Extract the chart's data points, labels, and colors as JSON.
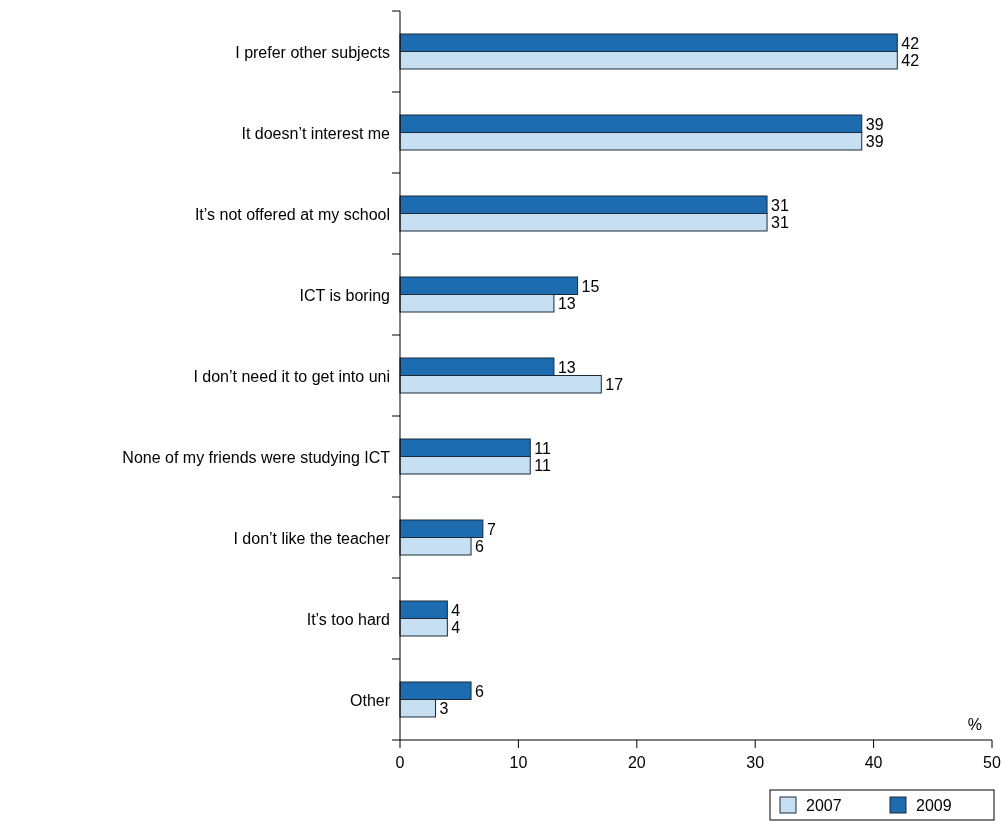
{
  "chart_data": {
    "type": "bar",
    "orientation": "horizontal",
    "categories": [
      "I prefer other subjects",
      "It doesn’t interest me",
      "It’s not offered at my school",
      "ICT is boring",
      "I don’t need it to get into uni",
      "None of my friends were studying ICT",
      "I don’t like the teacher",
      "It’s too hard",
      "Other"
    ],
    "series": [
      {
        "name": "2007",
        "color": "#c6dff2",
        "values": [
          42,
          39,
          31,
          13,
          17,
          11,
          6,
          4,
          3
        ]
      },
      {
        "name": "2009",
        "color": "#1e6cb0",
        "values": [
          42,
          39,
          31,
          15,
          13,
          11,
          7,
          4,
          6
        ]
      }
    ],
    "xlim": [
      0,
      50
    ],
    "xticks": [
      0,
      10,
      20,
      30,
      40,
      50
    ],
    "xlabel": "%",
    "data_labels": true,
    "legend": "bottom right",
    "grid": false
  }
}
